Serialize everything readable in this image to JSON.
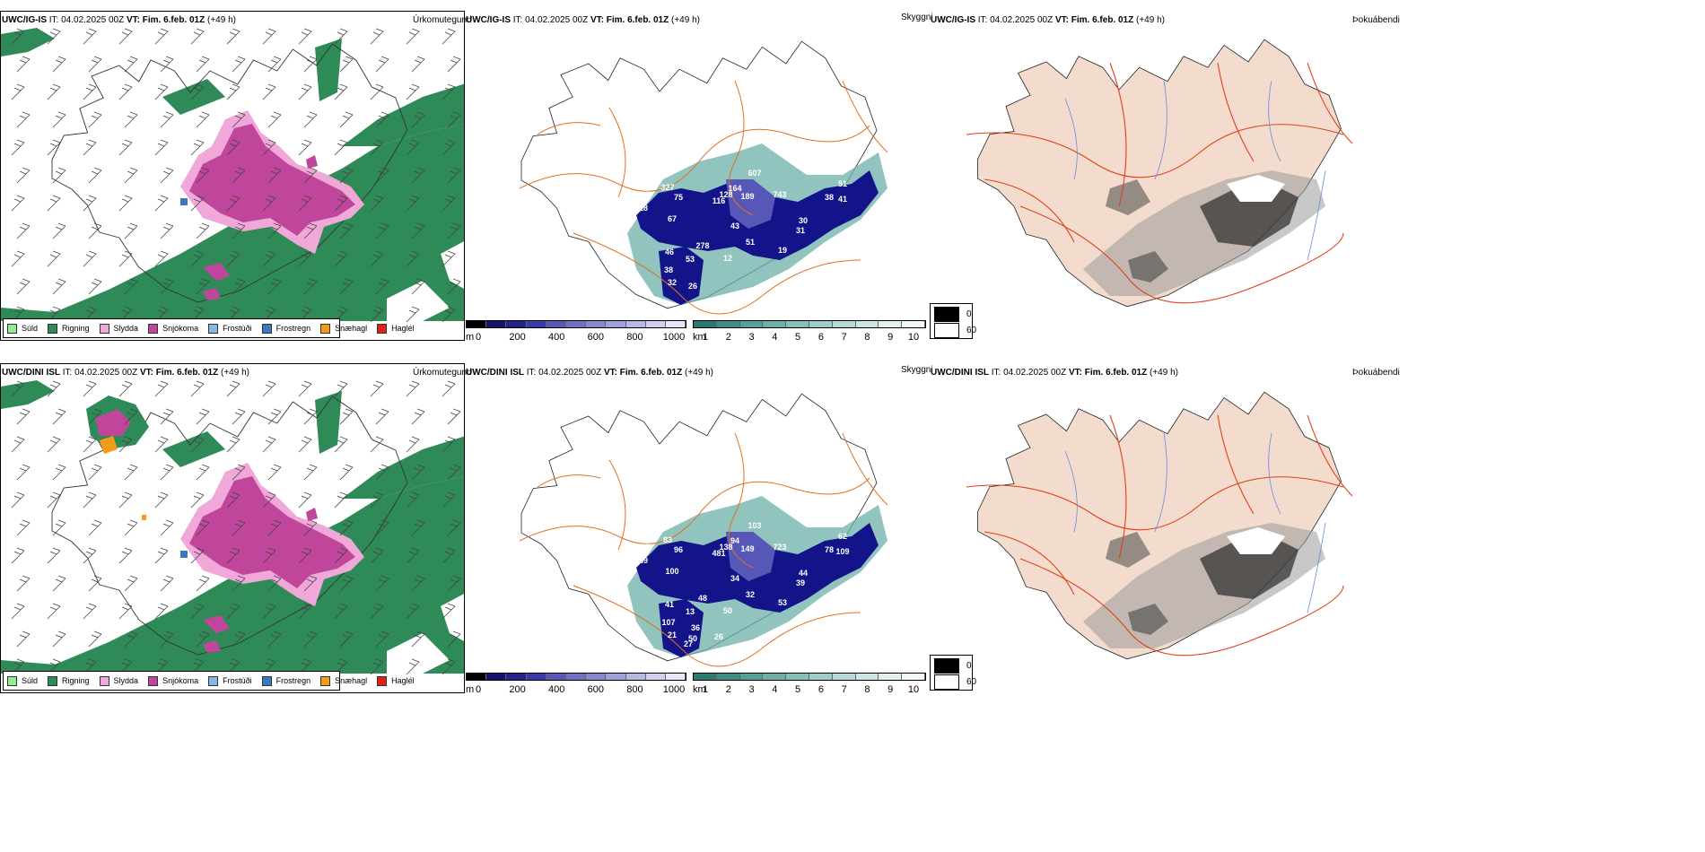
{
  "rows": [
    {
      "model": "UWC/IG-IS",
      "it": "IT: 04.02.2025 00Z",
      "vt": "VT: Fim. 6.feb. 01Z",
      "lead": "(+49 h)",
      "precip_title": "Úrkomutegund",
      "vis_title": "Skyggni",
      "fog_title": "Þokuábendi",
      "cloud_numbers": [
        "76",
        "607",
        "128",
        "164",
        "189",
        "743",
        "327",
        "60",
        "75",
        "116",
        "51",
        "38",
        "41",
        "18",
        "63",
        "67",
        "43",
        "30",
        "31",
        "46",
        "278",
        "51",
        "53",
        "19",
        "12",
        "38",
        "32",
        "26"
      ]
    },
    {
      "model": "UWC/DINI ISL",
      "it": "IT: 04.02.2025 00Z",
      "vt": "VT: Fim. 6.feb. 01Z",
      "lead": "(+49 h)",
      "precip_title": "Úrkomutegund",
      "vis_title": "Skyggni",
      "fog_title": "Þokuábendi",
      "cloud_numbers": [
        "19",
        "103",
        "138",
        "94",
        "149",
        "723",
        "83",
        "85",
        "96",
        "481",
        "62",
        "78",
        "109",
        "49",
        "55",
        "100",
        "34",
        "44",
        "39",
        "41",
        "48",
        "32",
        "13",
        "53",
        "50",
        "107",
        "21",
        "50",
        "36",
        "26",
        "27"
      ]
    }
  ],
  "precip_legend": [
    {
      "label": "Súld",
      "color": "#90ee90"
    },
    {
      "label": "Rigning",
      "color": "#2e8b57"
    },
    {
      "label": "Slydda",
      "color": "#f0a8d8"
    },
    {
      "label": "Snjókoma",
      "color": "#c0469c"
    },
    {
      "label": "Frostúði",
      "color": "#87b7e8"
    },
    {
      "label": "Frostregn",
      "color": "#3a78c2"
    },
    {
      "label": "Snæhagl",
      "color": "#f59b1a"
    },
    {
      "label": "Haglél",
      "color": "#e0201b"
    }
  ],
  "cloudbase_bar": {
    "unit": "m",
    "ticks": [
      "0",
      "200",
      "400",
      "600",
      "800",
      "1000"
    ],
    "colors": [
      "#000000",
      "#14146e",
      "#23238c",
      "#3a3aa8",
      "#5757b8",
      "#7070c4",
      "#8888cf",
      "#a0a0da",
      "#b8b8e4",
      "#d0d0ee",
      "#e6e6f6"
    ]
  },
  "visibility_bar": {
    "unit": "km",
    "ticks": [
      "1",
      "2",
      "3",
      "4",
      "5",
      "6",
      "7",
      "8",
      "9",
      "10"
    ],
    "colors": [
      "#2a7a72",
      "#3f8e86",
      "#56a099",
      "#6db0aa",
      "#86c0ba",
      "#9ecdc8",
      "#b6dad6",
      "#cde6e3",
      "#e2f1ef",
      "#f3f9f8"
    ]
  },
  "fog_legend": [
    {
      "label": "0",
      "color": "#000000"
    },
    {
      "label": "60",
      "color": "#ffffff"
    }
  ]
}
